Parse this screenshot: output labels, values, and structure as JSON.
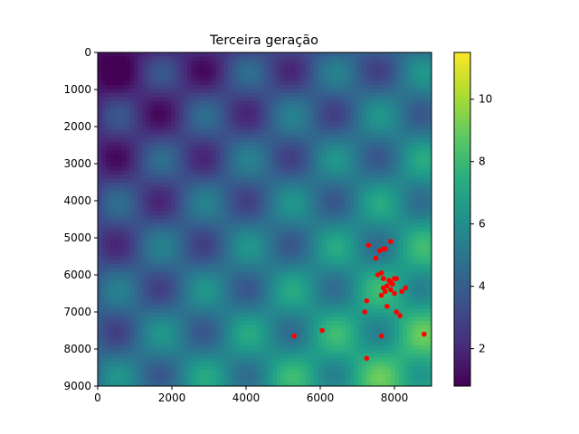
{
  "chart_data": {
    "type": "heatmap",
    "title": "Terceira geração",
    "xlabel": "",
    "ylabel": "",
    "xlim": [
      0,
      9000
    ],
    "ylim": [
      9000,
      0
    ],
    "y_axis_inverted": true,
    "x_ticks": [
      0,
      2000,
      4000,
      6000,
      8000
    ],
    "y_ticks": [
      0,
      1000,
      2000,
      3000,
      4000,
      5000,
      6000,
      7000,
      8000,
      9000
    ],
    "colormap": "viridis",
    "colorbar": {
      "min": 0.8,
      "max": 11.5,
      "ticks": [
        2,
        4,
        6,
        8,
        10
      ]
    },
    "grid": false,
    "heatmap_description": "smooth periodic field, low values (dark purple) near top-left, high values (yellow) near bottom-right",
    "overlay_series": {
      "type": "scatter",
      "color": "#ff0000",
      "points": [
        [
          7300,
          5200
        ],
        [
          7900,
          5100
        ],
        [
          7700,
          5300
        ],
        [
          7600,
          5350
        ],
        [
          7750,
          5300
        ],
        [
          7500,
          5550
        ],
        [
          7550,
          6000
        ],
        [
          7650,
          5950
        ],
        [
          7700,
          6100
        ],
        [
          7850,
          6150
        ],
        [
          7900,
          6200
        ],
        [
          8000,
          6100
        ],
        [
          8050,
          6100
        ],
        [
          7950,
          6250
        ],
        [
          7800,
          6300
        ],
        [
          7700,
          6350
        ],
        [
          7900,
          6400
        ],
        [
          7750,
          6450
        ],
        [
          8300,
          6350
        ],
        [
          8200,
          6450
        ],
        [
          7650,
          6550
        ],
        [
          8000,
          6500
        ],
        [
          7250,
          6700
        ],
        [
          7800,
          6850
        ],
        [
          7200,
          7000
        ],
        [
          8050,
          7000
        ],
        [
          8150,
          7100
        ],
        [
          6050,
          7500
        ],
        [
          5300,
          7650
        ],
        [
          7650,
          7650
        ],
        [
          8800,
          7600
        ],
        [
          7250,
          8250
        ]
      ]
    }
  },
  "colors": {
    "scatter": "#ff0000",
    "axis": "#000000",
    "background": "#ffffff"
  }
}
